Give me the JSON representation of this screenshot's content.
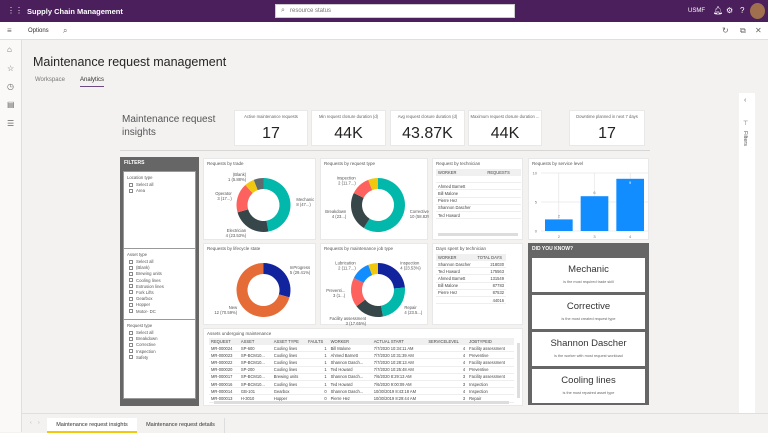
{
  "app": {
    "title": "Supply Chain Management",
    "search_placeholder": "resource status",
    "company": "USMF"
  },
  "options_bar": {
    "options_label": "Options"
  },
  "page": {
    "title": "Maintenance request management",
    "tabs": [
      {
        "label": "Workspace",
        "active": false
      },
      {
        "label": "Analytics",
        "active": true
      }
    ]
  },
  "filter_pane": {
    "label": "Filters"
  },
  "report": {
    "header": "Maintenance request insights",
    "kpis": [
      {
        "label": "Active maintenance requests",
        "value": "17"
      },
      {
        "label": "Min request closure duration (d)",
        "value": "44K"
      },
      {
        "label": "Avg request closure duration (d)",
        "value": "43.87K"
      },
      {
        "label": "Maximum request closure duration ...",
        "value": "44K"
      },
      {
        "label": "Downtime planned in next 7 days",
        "value": "17"
      }
    ],
    "filters": {
      "title": "FILTERS",
      "groups": [
        {
          "title": "Location type",
          "items": [
            "Select all",
            "Area"
          ]
        },
        {
          "title": "Asset type",
          "items": [
            "Select all",
            "(Blank)",
            "Brewing units",
            "Cooling lines",
            "Extrusion lines",
            "Fork Lifts",
            "Gearbox",
            "Hopper",
            "Motor- DC"
          ]
        },
        {
          "title": "Request type",
          "items": [
            "Select all",
            "Breakdown",
            "Corrective",
            "Inspection",
            "Safety"
          ]
        }
      ]
    },
    "technician_table": {
      "title": "Request by technician",
      "columns": [
        "WORKER",
        "REQUESTS"
      ],
      "rows": [
        [
          "",
          ""
        ],
        [
          "Ahmed Barnett",
          ""
        ],
        [
          "Bill Malone",
          ""
        ],
        [
          "Pierre Hez",
          ""
        ],
        [
          "Shannon Dascher",
          ""
        ],
        [
          "Ted Howard",
          ""
        ]
      ]
    },
    "days_table": {
      "title": "Days spent by technician",
      "columns": [
        "WORKER",
        "TOTAL DAYS"
      ],
      "rows": [
        [
          "Shannon Dascher",
          "218030"
        ],
        [
          "Ted Howard",
          "175563"
        ],
        [
          "Ahmed Barnett",
          "131549"
        ],
        [
          "Bill Malone",
          "87783"
        ],
        [
          "Pierre Hez",
          "87532"
        ],
        [
          "",
          "44016"
        ]
      ]
    },
    "assets_table": {
      "title": "Assets undergoing maintenance",
      "columns": [
        "REQUEST",
        "ASSET",
        "ASSET TYPE",
        "FAULTS",
        "WORKER",
        "ACTUAL START",
        "SERVICELEVEL",
        "JOBTYPEID"
      ],
      "rows": [
        [
          "MR-000024",
          "SP-600",
          "Cooling lines",
          "1",
          "Bill Malone",
          "7/7/2020 10:34:11 AM",
          "4",
          "Facility assessment"
        ],
        [
          "MR-000023",
          "SP-BCM10...",
          "Cooling lines",
          "1",
          "Ahmed Barnett",
          "7/7/2020 10:31:39 AM",
          "4",
          "Preventive"
        ],
        [
          "MR-000022",
          "SP-BCM10...",
          "Cooling lines",
          "1",
          "Shannon Dasch...",
          "7/7/2020 10:28:13 AM",
          "4",
          "Facility assessment"
        ],
        [
          "MR-000020",
          "SP-200",
          "Cooling lines",
          "1",
          "Ted Howard",
          "7/7/2020 10:25:48 AM",
          "4",
          "Preventive"
        ],
        [
          "MR-000017",
          "SP-BCM10...",
          "Brewing units",
          "1",
          "Shannon Dasch...",
          "7/6/2020 8:29:13 AM",
          "3",
          "Facility assessment"
        ],
        [
          "MR-000016",
          "SP-BCM10...",
          "Cooling lines",
          "1",
          "Ted Howard",
          "7/6/2020 9:00:09 AM",
          "3",
          "Inspection"
        ],
        [
          "MR-000014",
          "GB-101",
          "Gearbox",
          "0",
          "Shannon Dasch...",
          "10/30/2019 8:43:18 AM",
          "4",
          "Inspection"
        ],
        [
          "MR-000013",
          "H-3010",
          "Hopper",
          "0",
          "Pierre Hez",
          "10/30/2019 8:29:44 AM",
          "3",
          "Repair"
        ]
      ]
    },
    "did_you_know": {
      "title": "DID YOU KNOW?",
      "cards": [
        {
          "big": "Mechanic",
          "small": "is the most required trade skill"
        },
        {
          "big": "Corrective",
          "small": "is the most created request type"
        },
        {
          "big": "Shannon Dascher",
          "small": "is the worker with most request workload"
        },
        {
          "big": "Cooling lines",
          "small": "is the most repaired asset type"
        }
      ]
    }
  },
  "chart_data": [
    {
      "type": "pie",
      "title": "Requests by trade",
      "slices": [
        {
          "name": "Mechanic",
          "value": 8,
          "label": "Mechanic",
          "sublabel": "8 (47...)",
          "color": "#01b8aa"
        },
        {
          "name": "Electrician",
          "value": 4,
          "label": "Electrician",
          "sublabel": "4 (23.53%)",
          "color": "#374649"
        },
        {
          "name": "Operator",
          "value": 3,
          "label": "Operator",
          "sublabel": "3 (17...)",
          "color": "#fd625e"
        },
        {
          "name": "(Blank)",
          "value": 1,
          "label": "(Blank)",
          "sublabel": "1 (5.88%)",
          "color": "#f2c80f"
        },
        {
          "name": "",
          "value": 1,
          "label": "",
          "sublabel": "",
          "color": "#5f6b6d"
        }
      ]
    },
    {
      "type": "pie",
      "title": "Requests by lifecycle state",
      "slices": [
        {
          "name": "InProgress",
          "value": 5,
          "label": "InProgress",
          "sublabel": "5 (29.41%)",
          "color": "#12239e"
        },
        {
          "name": "New",
          "value": 12,
          "label": "New",
          "sublabel": "12 (70.59%)",
          "color": "#e66c37"
        }
      ]
    },
    {
      "type": "pie",
      "title": "Requests by request type",
      "slices": [
        {
          "name": "Corrective",
          "value": 10,
          "label": "Corrective",
          "sublabel": "10 (58.82%)",
          "color": "#01b8aa"
        },
        {
          "name": "Breakdown",
          "value": 4,
          "label": "Breakdown",
          "sublabel": "4 (23...)",
          "color": "#374649"
        },
        {
          "name": "Inspection",
          "value": 2,
          "label": "Inspection",
          "sublabel": "2 (11.7...)",
          "color": "#fd625e"
        },
        {
          "name": "",
          "value": 1,
          "label": "",
          "sublabel": "",
          "color": "#f2c80f"
        }
      ]
    },
    {
      "type": "pie",
      "title": "Requests by maintenance job type",
      "slices": [
        {
          "name": "Inspection",
          "value": 4,
          "label": "Inspection",
          "sublabel": "4 (23.53%)",
          "color": "#12239e"
        },
        {
          "name": "Repair",
          "value": 4,
          "label": "Repair",
          "sublabel": "4 (23.5...)",
          "color": "#01b8aa"
        },
        {
          "name": "Facility assessment",
          "value": 3,
          "label": "Facility assessment",
          "sublabel": "3 (17.65%)",
          "color": "#374649"
        },
        {
          "name": "Preventi...",
          "value": 3,
          "label": "Preventi...",
          "sublabel": "3 (1...)",
          "color": "#fd625e"
        },
        {
          "name": "Lubrication",
          "value": 2,
          "label": "Lubrication",
          "sublabel": "2 (11.7...)",
          "color": "#118dff"
        },
        {
          "name": "",
          "value": 1,
          "label": "",
          "sublabel": "",
          "color": "#f2c80f"
        }
      ]
    },
    {
      "type": "bar",
      "title": "Requests by service level",
      "categories": [
        "2",
        "3",
        "4"
      ],
      "values": [
        2,
        6,
        9
      ],
      "ylim": [
        0,
        10
      ],
      "yticks": [
        "0",
        "5",
        "10"
      ],
      "grid": true,
      "color": "#118dff"
    }
  ],
  "bottom_tabs": [
    {
      "label": "Maintenance request insights",
      "active": true
    },
    {
      "label": "Maintenance request details",
      "active": false
    }
  ]
}
